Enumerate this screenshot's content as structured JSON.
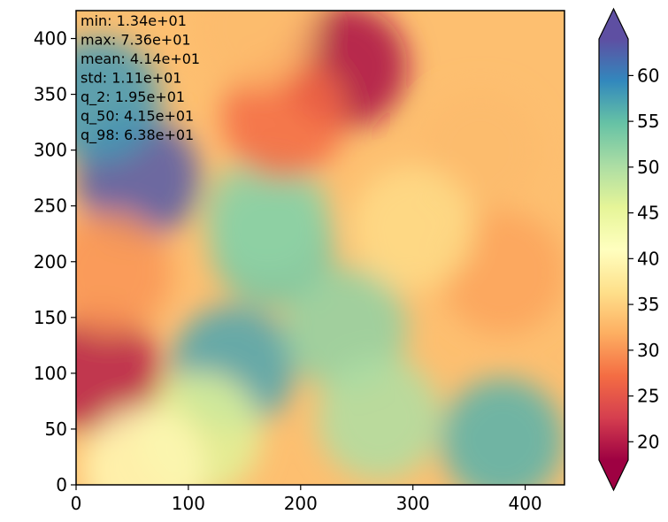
{
  "chart_data": {
    "type": "heatmap",
    "title": "",
    "xlabel": "",
    "ylabel": "",
    "xlim": [
      0,
      435
    ],
    "ylim": [
      0,
      425
    ],
    "x_ticks": [
      "0",
      "100",
      "200",
      "300",
      "400"
    ],
    "y_ticks": [
      "0",
      "50",
      "100",
      "150",
      "200",
      "250",
      "300",
      "350",
      "400"
    ],
    "colormap": "Spectral",
    "colorbar": {
      "range": [
        18,
        64
      ],
      "ticks": [
        "20",
        "25",
        "30",
        "35",
        "40",
        "45",
        "50",
        "55",
        "60"
      ],
      "extend": "both"
    },
    "stats_annotation": [
      "min: 1.34e+01",
      "max: 7.36e+01",
      "mean: 4.14e+01",
      "std: 1.11e+01",
      "q_2: 1.95e+01",
      "q_50: 4.15e+01",
      "q_98: 6.38e+01"
    ],
    "field_features": [
      {
        "x": 55,
        "y": 275,
        "value": 63
      },
      {
        "x": 20,
        "y": 345,
        "value": 58
      },
      {
        "x": 175,
        "y": 215,
        "value": 54
      },
      {
        "x": 170,
        "y": 240,
        "value": 52
      },
      {
        "x": 140,
        "y": 105,
        "value": 57
      },
      {
        "x": 240,
        "y": 140,
        "value": 52
      },
      {
        "x": 380,
        "y": 40,
        "value": 56
      },
      {
        "x": 270,
        "y": 60,
        "value": 50
      },
      {
        "x": 110,
        "y": 45,
        "value": 46
      },
      {
        "x": 240,
        "y": 375,
        "value": 19
      },
      {
        "x": 185,
        "y": 330,
        "value": 27
      },
      {
        "x": 20,
        "y": 100,
        "value": 20
      },
      {
        "x": 30,
        "y": 190,
        "value": 30
      },
      {
        "x": 380,
        "y": 190,
        "value": 31
      },
      {
        "x": 360,
        "y": 300,
        "value": 33
      },
      {
        "x": 160,
        "y": 410,
        "value": 33
      },
      {
        "x": 300,
        "y": 230,
        "value": 36
      },
      {
        "x": 60,
        "y": 15,
        "value": 40
      }
    ]
  }
}
